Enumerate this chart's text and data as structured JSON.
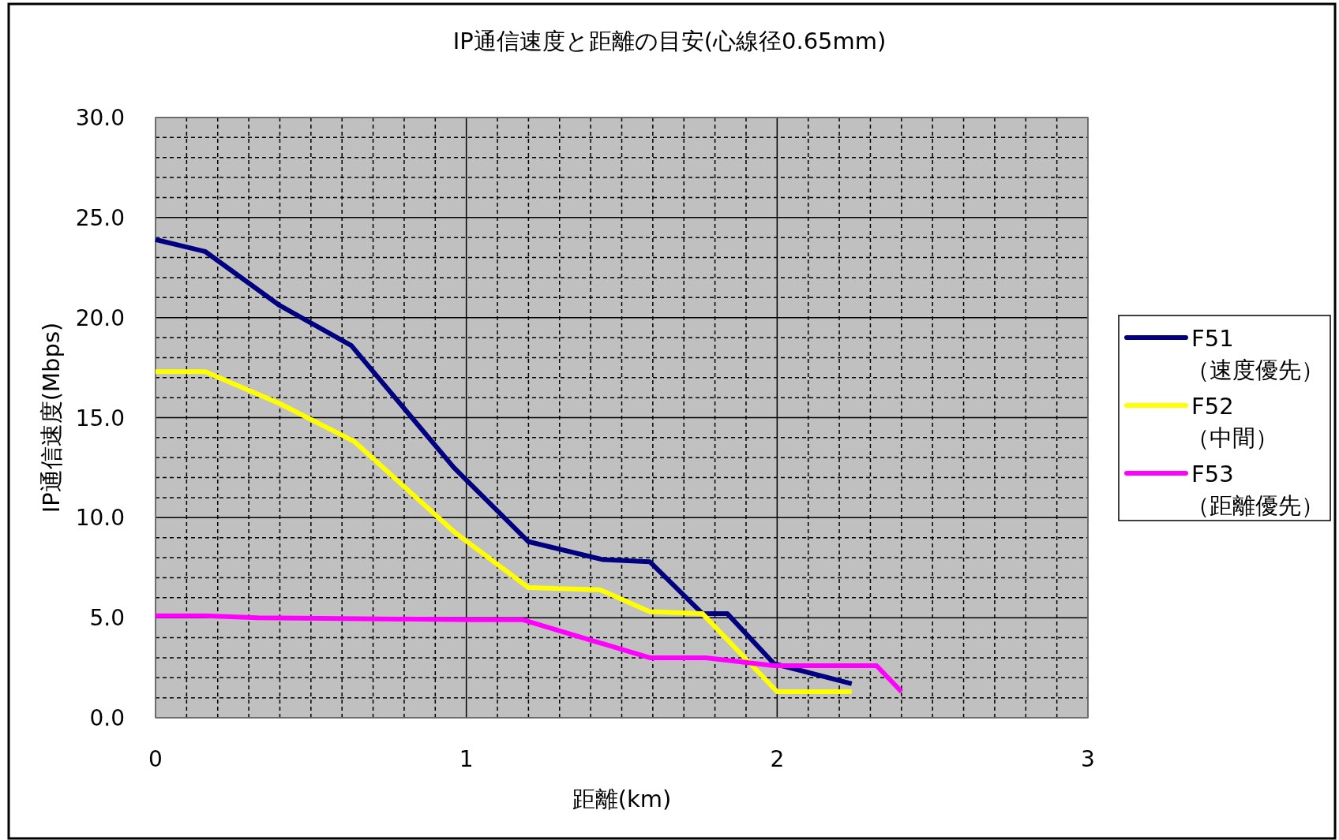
{
  "chart_data": {
    "type": "line",
    "title": "IP通信速度と距離の目安(心線径0.65mm)",
    "xlabel": "距離(km)",
    "ylabel": "IP通信速度(Mbps)",
    "xlim": [
      0,
      3
    ],
    "ylim": [
      0,
      30
    ],
    "xticks": [
      0,
      1,
      2,
      3
    ],
    "yticks": [
      {
        "value": 0,
        "label": "0.0"
      },
      {
        "value": 5,
        "label": "5.0"
      },
      {
        "value": 10,
        "label": "10.0"
      },
      {
        "value": 15,
        "label": "15.0"
      },
      {
        "value": 20,
        "label": "20.0"
      },
      {
        "value": 25,
        "label": "25.0"
      },
      {
        "value": 30,
        "label": "30.0"
      }
    ],
    "grid": true,
    "legend": "right",
    "series": [
      {
        "name": "F51（速度優先）",
        "color": "#000080",
        "x": [
          0,
          0.16,
          0.4,
          0.63,
          0.96,
          1.2,
          1.44,
          1.59,
          1.76,
          1.84,
          1.99,
          2.24
        ],
        "values": [
          23.9,
          23.3,
          20.6,
          18.6,
          12.5,
          8.8,
          7.9,
          7.8,
          5.2,
          5.2,
          2.7,
          1.7
        ]
      },
      {
        "name": "F52（中間）",
        "color": "#ffff00",
        "x": [
          0,
          0.16,
          0.4,
          0.64,
          0.96,
          1.2,
          1.43,
          1.59,
          1.76,
          2.0,
          2.24
        ],
        "values": [
          17.3,
          17.3,
          15.7,
          13.8,
          9.3,
          6.5,
          6.4,
          5.3,
          5.2,
          1.3,
          1.3
        ]
      },
      {
        "name": "F53（距離優先）",
        "color": "#ff00ff",
        "x": [
          0,
          0.16,
          0.33,
          1.02,
          1.18,
          1.59,
          1.77,
          1.99,
          2.32,
          2.4
        ],
        "values": [
          5.1,
          5.1,
          5.0,
          4.9,
          4.9,
          3.0,
          3.0,
          2.6,
          2.6,
          1.3
        ]
      }
    ]
  }
}
